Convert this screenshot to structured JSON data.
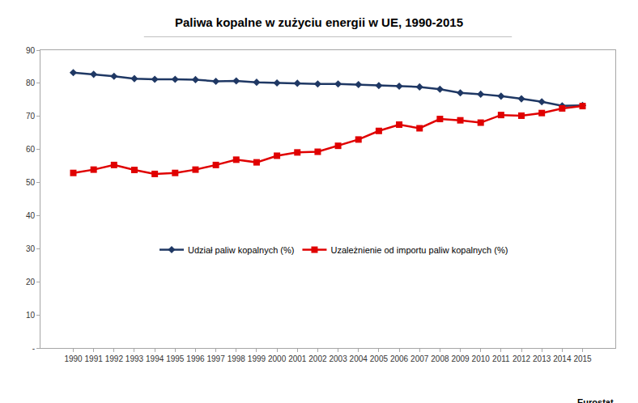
{
  "chart_data": {
    "type": "line",
    "title": "Paliwa kopalne w zużyciu energii w UE, 1990-2015",
    "annotations": [
      "Eurostat"
    ],
    "categories": [
      "1990",
      "1991",
      "1992",
      "1993",
      "1994",
      "1995",
      "1996",
      "1997",
      "1998",
      "1999",
      "2000",
      "2001",
      "2002",
      "2003",
      "2004",
      "2005",
      "2006",
      "2007",
      "2008",
      "2009",
      "2010",
      "2011",
      "2012",
      "2013",
      "2014",
      "2015"
    ],
    "series": [
      {
        "name": "Udział paliw kopalnych (%)",
        "color": "#1f3864",
        "marker": "diamond",
        "values": [
          83.2,
          82.7,
          82.1,
          81.4,
          81.2,
          81.2,
          81.1,
          80.6,
          80.7,
          80.3,
          80.1,
          80.0,
          79.8,
          79.8,
          79.6,
          79.3,
          79.1,
          78.9,
          78.2,
          77.1,
          76.7,
          76.1,
          75.3,
          74.4,
          73.2,
          73.3
        ]
      },
      {
        "name": "Uzależnienie od importu paliw kopalnych (%)",
        "color": "#e00000",
        "marker": "square",
        "values": [
          52.9,
          53.9,
          55.3,
          53.8,
          52.6,
          52.9,
          53.9,
          55.3,
          56.9,
          56.1,
          58.1,
          59.1,
          59.3,
          61.1,
          63.0,
          65.6,
          67.5,
          66.4,
          69.2,
          68.8,
          68.1,
          70.4,
          70.2,
          71.0,
          72.4,
          73.1
        ]
      }
    ],
    "ylim": [
      0,
      90
    ],
    "yticks": [
      {
        "value": 0,
        "label": "-"
      },
      10,
      20,
      30,
      40,
      50,
      60,
      70,
      80,
      90
    ],
    "grid": false,
    "legend": "middle left"
  }
}
